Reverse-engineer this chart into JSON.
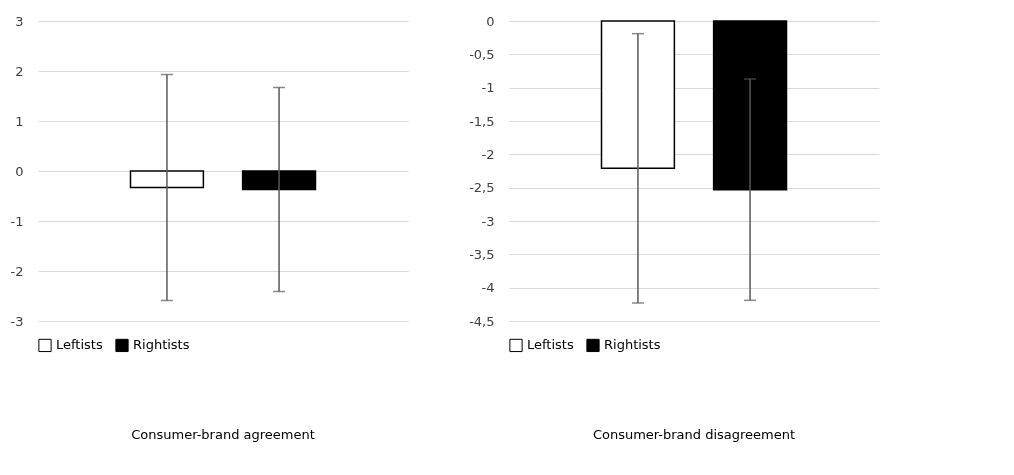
{
  "chart_data": [
    {
      "type": "bar",
      "title": "Consumer-brand agreement",
      "categories": [
        null
      ],
      "series": [
        {
          "name": "Leftists",
          "color": "#ffffff",
          "values": [
            -0.33
          ],
          "errors": [
            2.26
          ]
        },
        {
          "name": "Rightists",
          "color": "#000000",
          "values": [
            -0.37
          ],
          "errors": [
            2.04
          ]
        }
      ],
      "ylim": [
        -3,
        3
      ],
      "yticks": [
        -3,
        -2,
        -1,
        0,
        1,
        2,
        3
      ],
      "grid": "y",
      "legend": "bottom"
    },
    {
      "type": "bar",
      "title": "Consumer-brand disagreement",
      "categories": [
        null
      ],
      "series": [
        {
          "name": "Leftists",
          "color": "#ffffff",
          "values": [
            -2.21
          ],
          "errors": [
            2.02
          ]
        },
        {
          "name": "Rightists",
          "color": "#000000",
          "values": [
            -2.53
          ],
          "errors": [
            1.66
          ]
        }
      ],
      "ylim": [
        -4.5,
        0
      ],
      "yticks": [
        {
          "value": -4.5,
          "label": "-4,5"
        },
        {
          "value": -4,
          "label": "-4"
        },
        {
          "value": -3.5,
          "label": "-3,5"
        },
        {
          "value": -3,
          "label": "-3"
        },
        {
          "value": -2.5,
          "label": "-2,5"
        },
        {
          "value": -2,
          "label": "-2"
        },
        {
          "value": -1.5,
          "label": "-1,5"
        },
        {
          "value": -1,
          "label": "-1"
        },
        {
          "value": -0.5,
          "label": "-0,5"
        },
        {
          "value": 0,
          "label": "0"
        }
      ],
      "grid": "y",
      "legend": "bottom"
    }
  ]
}
